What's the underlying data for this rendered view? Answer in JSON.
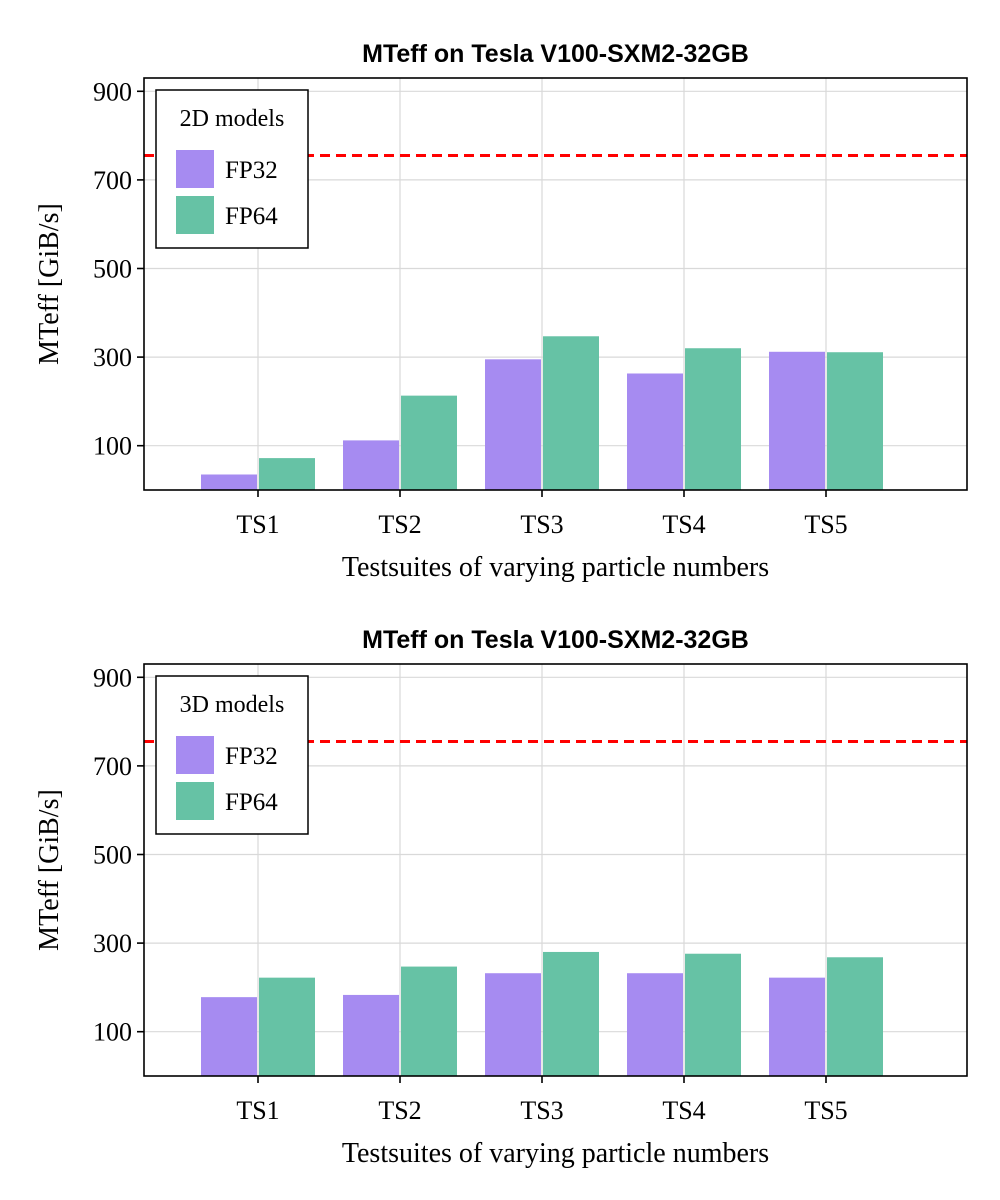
{
  "colors": {
    "fp32": "#a68bf1",
    "fp64": "#66c2a5",
    "reference": "#ff0000"
  },
  "chart_data": [
    {
      "type": "bar",
      "title": "MTeff on Tesla V100-SXM2-32GB",
      "xlabel": "Testsuites of varying particle numbers",
      "ylabel": "MTeff [GiB/s]",
      "categories": [
        "TS1",
        "TS2",
        "TS3",
        "TS4",
        "TS5"
      ],
      "yticks": [
        100,
        300,
        500,
        700,
        900
      ],
      "ylim": [
        0,
        930
      ],
      "legend": {
        "title": "2D models",
        "position": "top-left"
      },
      "grid": true,
      "reference_line": {
        "y": 755,
        "style": "dashed",
        "color": "#ff0000"
      },
      "series": [
        {
          "name": "FP32",
          "color": "#a68bf1",
          "values": [
            35,
            112,
            295,
            263,
            312
          ]
        },
        {
          "name": "FP64",
          "color": "#66c2a5",
          "values": [
            72,
            213,
            347,
            320,
            311
          ]
        }
      ]
    },
    {
      "type": "bar",
      "title": "MTeff on Tesla V100-SXM2-32GB",
      "xlabel": "Testsuites of varying particle numbers",
      "ylabel": "MTeff [GiB/s]",
      "categories": [
        "TS1",
        "TS2",
        "TS3",
        "TS4",
        "TS5"
      ],
      "yticks": [
        100,
        300,
        500,
        700,
        900
      ],
      "ylim": [
        0,
        930
      ],
      "legend": {
        "title": "3D models",
        "position": "top-left"
      },
      "grid": true,
      "reference_line": {
        "y": 755,
        "style": "dashed",
        "color": "#ff0000"
      },
      "series": [
        {
          "name": "FP32",
          "color": "#a68bf1",
          "values": [
            178,
            183,
            232,
            232,
            222
          ]
        },
        {
          "name": "FP64",
          "color": "#66c2a5",
          "values": [
            222,
            247,
            280,
            276,
            268
          ]
        }
      ]
    }
  ]
}
